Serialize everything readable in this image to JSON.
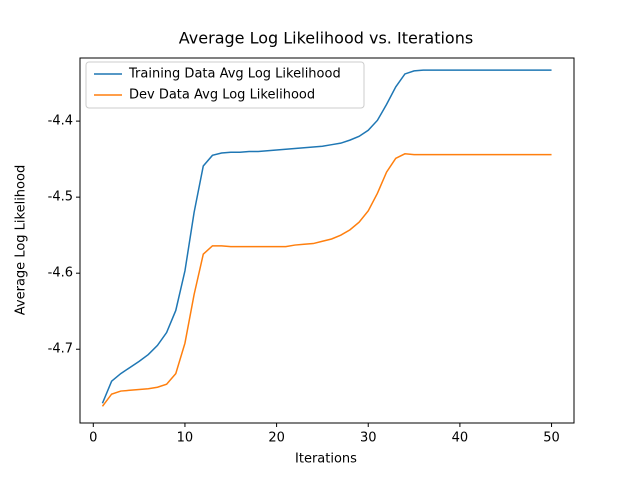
{
  "chart_data": {
    "type": "line",
    "title": "Average Log Likelihood vs. Iterations",
    "x_label": "Iterations",
    "y_label": "Average Log Likelihood",
    "x": [
      1,
      2,
      3,
      4,
      5,
      6,
      7,
      8,
      9,
      10,
      11,
      12,
      13,
      14,
      15,
      16,
      17,
      18,
      19,
      20,
      21,
      22,
      23,
      24,
      25,
      26,
      27,
      28,
      29,
      30,
      31,
      32,
      33,
      34,
      35,
      36,
      37,
      38,
      39,
      40,
      41,
      42,
      43,
      44,
      45,
      46,
      47,
      48,
      49,
      50
    ],
    "series": [
      {
        "name": "Training Data Avg Log Likelihood",
        "color": "#1f77b4",
        "values": [
          -4.771,
          -4.742,
          -4.732,
          -4.724,
          -4.716,
          -4.707,
          -4.695,
          -4.678,
          -4.649,
          -4.597,
          -4.52,
          -4.459,
          -4.445,
          -4.442,
          -4.441,
          -4.441,
          -4.44,
          -4.44,
          -4.439,
          -4.438,
          -4.437,
          -4.436,
          -4.435,
          -4.434,
          -4.433,
          -4.431,
          -4.429,
          -4.425,
          -4.42,
          -4.412,
          -4.399,
          -4.378,
          -4.355,
          -4.338,
          -4.334,
          -4.333,
          -4.333,
          -4.333,
          -4.333,
          -4.333,
          -4.333,
          -4.333,
          -4.333,
          -4.333,
          -4.333,
          -4.333,
          -4.333,
          -4.333,
          -4.333,
          -4.333
        ]
      },
      {
        "name": "Dev Data Avg Log Likelihood",
        "color": "#ff7f0e",
        "values": [
          -4.775,
          -4.759,
          -4.755,
          -4.754,
          -4.753,
          -4.752,
          -4.75,
          -4.746,
          -4.732,
          -4.692,
          -4.628,
          -4.575,
          -4.564,
          -4.564,
          -4.565,
          -4.565,
          -4.565,
          -4.565,
          -4.565,
          -4.565,
          -4.565,
          -4.563,
          -4.562,
          -4.561,
          -4.558,
          -4.555,
          -4.55,
          -4.543,
          -4.533,
          -4.518,
          -4.495,
          -4.467,
          -4.449,
          -4.443,
          -4.444,
          -4.444,
          -4.444,
          -4.444,
          -4.444,
          -4.444,
          -4.444,
          -4.444,
          -4.444,
          -4.444,
          -4.444,
          -4.444,
          -4.444,
          -4.444,
          -4.444,
          -4.444
        ]
      }
    ],
    "xlim": [
      -1.45,
      52.45
    ],
    "xticks": [
      0,
      10,
      20,
      30,
      40,
      50
    ],
    "ylim": [
      -4.797,
      -4.317
    ],
    "yticks": [
      -4.7,
      -4.6,
      -4.5,
      -4.4
    ],
    "legend": "upper-left",
    "grid": false
  }
}
